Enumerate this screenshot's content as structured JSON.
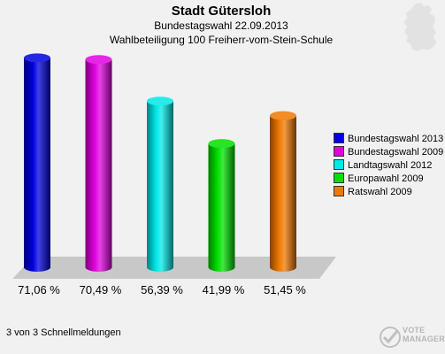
{
  "header": {
    "title": "Stadt Gütersloh",
    "subtitle": "Bundestagswahl 22.09.2013",
    "subtitle2": "Wahlbeteiligung 100 Freiherr-vom-Stein-Schule"
  },
  "footer": {
    "text": "3 von 3 Schnellmeldungen"
  },
  "logo": {
    "line1": "VOTE",
    "line2": "MANAGER"
  },
  "chart_data": {
    "type": "bar",
    "categories": [
      "Bundestagswahl 2013",
      "Bundestagswahl 2009",
      "Landtagswahl 2012",
      "Europawahl 2009",
      "Ratswahl 2009"
    ],
    "values": [
      71.06,
      70.49,
      56.39,
      41.99,
      51.45
    ],
    "value_labels": [
      "71,06 %",
      "70,49 %",
      "56,39 %",
      "41,99 %",
      "51,45 %"
    ],
    "colors": [
      "#0000e0",
      "#e000e0",
      "#00e8e8",
      "#00e000",
      "#f07800"
    ],
    "title": "Stadt Gütersloh",
    "subtitle": "Bundestagswahl 22.09.2013 / Wahlbeteiligung 100 Freiherr-vom-Stein-Schule",
    "legend_position": "right",
    "grid": false,
    "ylim": [
      0,
      80
    ]
  }
}
